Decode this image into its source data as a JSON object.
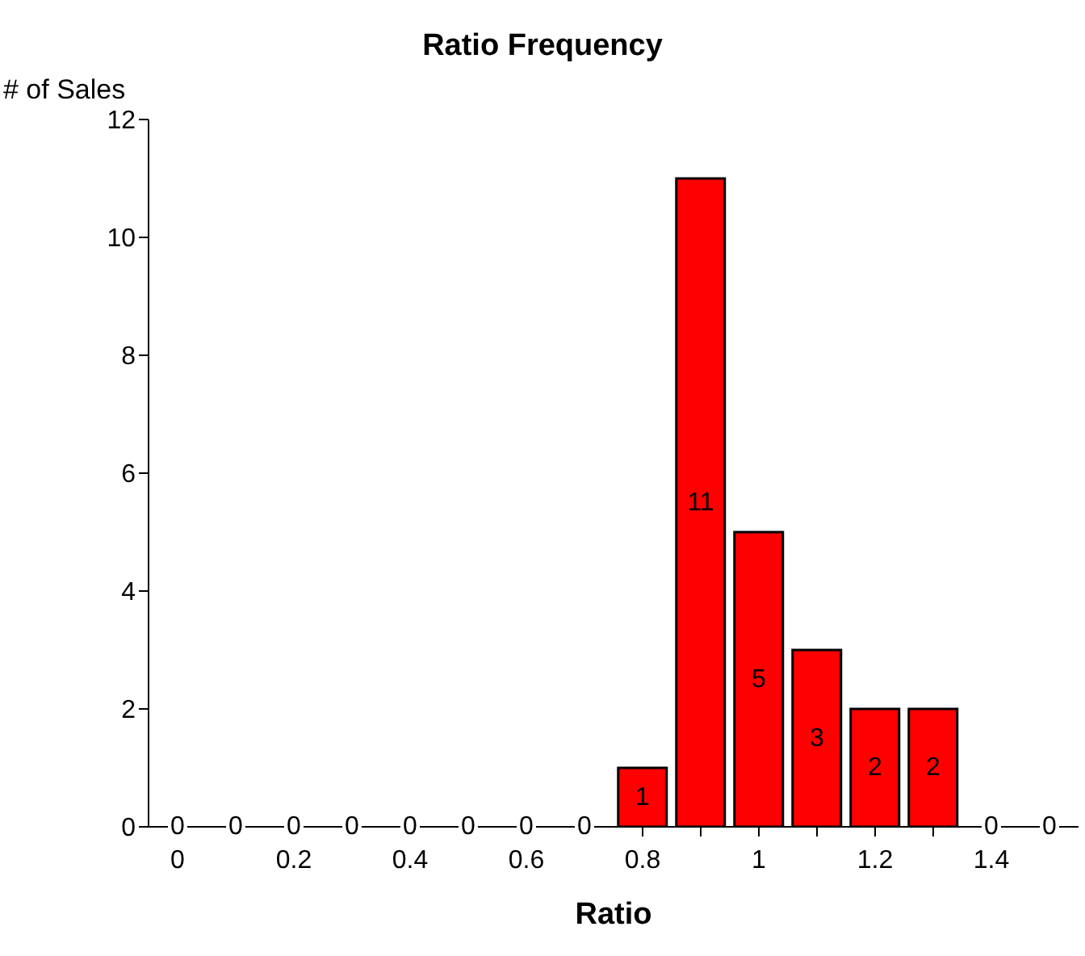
{
  "chart_data": {
    "type": "bar",
    "title": "Ratio Frequency",
    "xlabel": "Ratio",
    "ylabel": "# of Sales",
    "categories": [
      "0",
      null,
      "0.2",
      null,
      "0.4",
      null,
      "0.6",
      null,
      "0.8",
      null,
      "1",
      null,
      "1.2",
      null,
      "1.4",
      null
    ],
    "values": [
      0,
      0,
      0,
      0,
      0,
      0,
      0,
      0,
      1,
      11,
      5,
      3,
      2,
      2,
      0,
      0
    ],
    "color": "#ff0000",
    "ylim": [
      0,
      12
    ],
    "yticks": [
      0,
      2,
      4,
      6,
      8,
      10,
      12
    ],
    "data_labels": true,
    "grid": false
  }
}
